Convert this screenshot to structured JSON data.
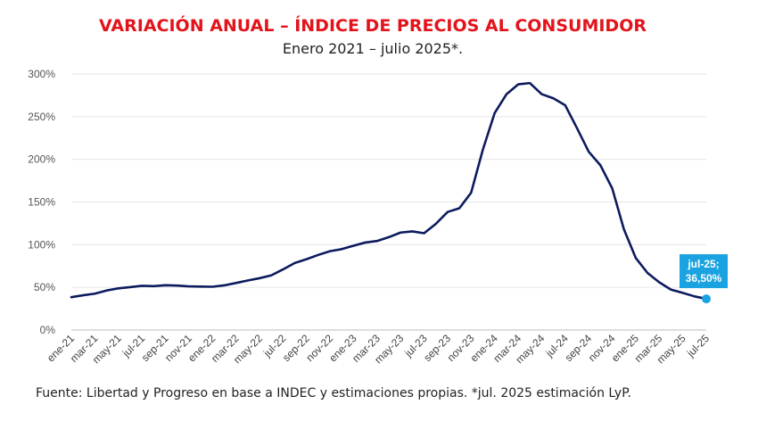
{
  "title": "VARIACIÓN ANUAL – ÍNDICE DE PRECIOS AL CONSUMIDOR",
  "subtitle": "Enero 2021 – julio 2025*.",
  "source": "Fuente: Libertad y Progreso en base a INDEC y estimaciones propias. *jul. 2025 estimación LyP.",
  "colors": {
    "title": "#e3131b",
    "line": "#0d1b5e",
    "highlight": "#1aa3e0"
  },
  "chart_data": {
    "type": "line",
    "ylim": [
      0,
      300
    ],
    "yticks": [
      0,
      50,
      100,
      150,
      200,
      250,
      300
    ],
    "ytick_labels": [
      "0%",
      "50%",
      "100%",
      "150%",
      "200%",
      "250%",
      "300%"
    ],
    "xtick_labels": [
      "ene-21",
      "mar-21",
      "may-21",
      "jul-21",
      "sep-21",
      "nov-21",
      "ene-22",
      "mar-22",
      "may-22",
      "jul-22",
      "sep-22",
      "nov-22",
      "ene-23",
      "mar-23",
      "may-23",
      "jul-23",
      "sep-23",
      "nov-23",
      "ene-24",
      "mar-24",
      "may-24",
      "jul-24",
      "sep-24",
      "nov-24",
      "ene-25",
      "mar-25",
      "may-25",
      "jul-25"
    ],
    "x": [
      "ene-21",
      "feb-21",
      "mar-21",
      "abr-21",
      "may-21",
      "jun-21",
      "jul-21",
      "ago-21",
      "sep-21",
      "oct-21",
      "nov-21",
      "dic-21",
      "ene-22",
      "feb-22",
      "mar-22",
      "abr-22",
      "may-22",
      "jun-22",
      "jul-22",
      "ago-22",
      "sep-22",
      "oct-22",
      "nov-22",
      "dic-22",
      "ene-23",
      "feb-23",
      "mar-23",
      "abr-23",
      "may-23",
      "jun-23",
      "jul-23",
      "ago-23",
      "sep-23",
      "oct-23",
      "nov-23",
      "dic-23",
      "ene-24",
      "feb-24",
      "mar-24",
      "abr-24",
      "may-24",
      "jun-24",
      "jul-24",
      "ago-24",
      "sep-24",
      "oct-24",
      "nov-24",
      "dic-24",
      "ene-25",
      "feb-25",
      "mar-25",
      "abr-25",
      "may-25",
      "jun-25",
      "jul-25"
    ],
    "series": [
      {
        "values": [
          38.5,
          40.7,
          42.6,
          46.3,
          48.8,
          50.2,
          51.8,
          51.4,
          52.5,
          52.1,
          51.2,
          50.9,
          50.7,
          52.3,
          55.1,
          58.0,
          60.7,
          64.0,
          71.0,
          78.5,
          83.0,
          88.0,
          92.4,
          94.8,
          98.8,
          102.5,
          104.3,
          108.8,
          114.2,
          115.6,
          113.4,
          124.4,
          138.3,
          142.7,
          160.9,
          211.4,
          254.2,
          276.2,
          287.9,
          289.4,
          276.4,
          271.5,
          263.4,
          236.7,
          209.0,
          193.0,
          166.0,
          117.8,
          84.5,
          66.9,
          55.9,
          47.3,
          43.5,
          39.4,
          36.5
        ]
      }
    ],
    "annotation": {
      "point": "jul-25",
      "line1": "jul-25;",
      "line2": "36,50%"
    }
  }
}
